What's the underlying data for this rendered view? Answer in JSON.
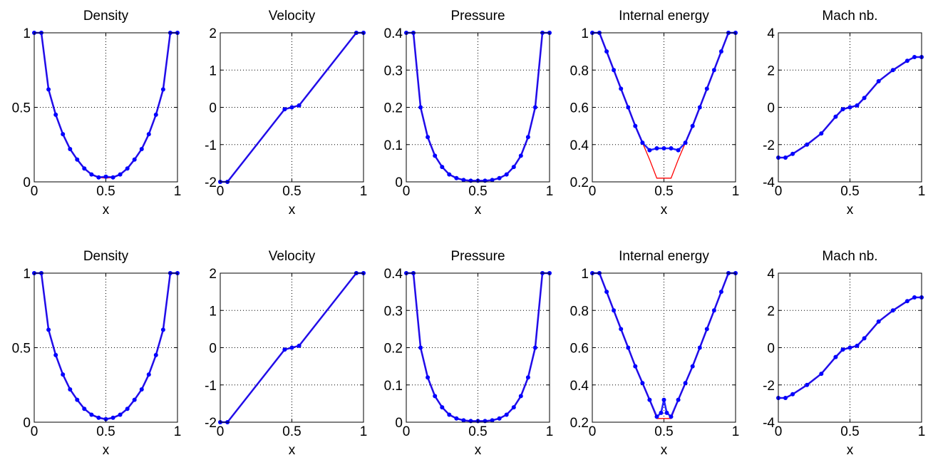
{
  "colors": {
    "exact": "#ff0000",
    "numerical": "#0000ff",
    "grid": "#000000",
    "axes": "#000000"
  },
  "chart_data": [
    {
      "type": "line",
      "title": "Density",
      "xlabel": "x",
      "ylabel": "",
      "xlim": [
        0,
        1
      ],
      "ylim": [
        0,
        1
      ],
      "xticks": [
        "0",
        "0.5",
        "1"
      ],
      "yticks": [
        "0",
        "0.5",
        "1"
      ],
      "grid": true,
      "series": [
        {
          "style": "line",
          "color": "#ff0000",
          "x": [
            0,
            0.05,
            0.1,
            0.15,
            0.2,
            0.25,
            0.3,
            0.35,
            0.4,
            0.45,
            0.5,
            0.55,
            0.6,
            0.65,
            0.7,
            0.75,
            0.8,
            0.85,
            0.9,
            0.95,
            1
          ],
          "y": [
            1,
            1,
            0.62,
            0.45,
            0.32,
            0.22,
            0.15,
            0.09,
            0.05,
            0.03,
            0.025,
            0.03,
            0.05,
            0.09,
            0.15,
            0.22,
            0.32,
            0.45,
            0.62,
            1,
            1
          ]
        },
        {
          "style": "markers",
          "color": "#0000ff",
          "x": [
            0,
            0.05,
            0.1,
            0.15,
            0.2,
            0.25,
            0.3,
            0.35,
            0.4,
            0.45,
            0.5,
            0.55,
            0.6,
            0.65,
            0.7,
            0.75,
            0.8,
            0.85,
            0.9,
            0.95,
            1
          ],
          "y": [
            1,
            1,
            0.62,
            0.45,
            0.32,
            0.22,
            0.15,
            0.09,
            0.05,
            0.03,
            0.035,
            0.03,
            0.05,
            0.09,
            0.15,
            0.22,
            0.32,
            0.45,
            0.62,
            1,
            1
          ]
        }
      ]
    },
    {
      "type": "line",
      "title": "Velocity",
      "xlabel": "x",
      "ylabel": "",
      "xlim": [
        0,
        1
      ],
      "ylim": [
        -2,
        2
      ],
      "xticks": [
        "0",
        "0.5",
        "1"
      ],
      "yticks": [
        "-2",
        "-1",
        "0",
        "1",
        "2"
      ],
      "grid": true,
      "series": [
        {
          "style": "line",
          "color": "#ff0000",
          "x": [
            0,
            0.05,
            0.45,
            0.5,
            0.55,
            0.95,
            1
          ],
          "y": [
            -2,
            -2,
            -0.05,
            0,
            0.05,
            2,
            2
          ]
        },
        {
          "style": "markers",
          "color": "#0000ff",
          "x": [
            0,
            0.05,
            0.45,
            0.5,
            0.55,
            0.95,
            1
          ],
          "y": [
            -2,
            -2,
            -0.05,
            0,
            0.05,
            2,
            2
          ]
        }
      ]
    },
    {
      "type": "line",
      "title": "Pressure",
      "xlabel": "x",
      "ylabel": "",
      "xlim": [
        0,
        1
      ],
      "ylim": [
        0,
        0.4
      ],
      "xticks": [
        "0",
        "0.5",
        "1"
      ],
      "yticks": [
        "0",
        "0.1",
        "0.2",
        "0.3",
        "0.4"
      ],
      "grid": true,
      "series": [
        {
          "style": "line",
          "color": "#ff0000",
          "x": [
            0,
            0.05,
            0.1,
            0.15,
            0.2,
            0.25,
            0.3,
            0.35,
            0.4,
            0.45,
            0.5,
            0.55,
            0.6,
            0.65,
            0.7,
            0.75,
            0.8,
            0.85,
            0.9,
            0.95,
            1
          ],
          "y": [
            0.4,
            0.4,
            0.2,
            0.12,
            0.07,
            0.04,
            0.02,
            0.01,
            0.005,
            0.003,
            0.003,
            0.003,
            0.005,
            0.01,
            0.02,
            0.04,
            0.07,
            0.12,
            0.2,
            0.4,
            0.4
          ]
        },
        {
          "style": "markers",
          "color": "#0000ff",
          "x": [
            0,
            0.05,
            0.1,
            0.15,
            0.2,
            0.25,
            0.3,
            0.35,
            0.4,
            0.45,
            0.5,
            0.55,
            0.6,
            0.65,
            0.7,
            0.75,
            0.8,
            0.85,
            0.9,
            0.95,
            1
          ],
          "y": [
            0.4,
            0.4,
            0.2,
            0.12,
            0.07,
            0.04,
            0.02,
            0.01,
            0.005,
            0.003,
            0.003,
            0.003,
            0.005,
            0.01,
            0.02,
            0.04,
            0.07,
            0.12,
            0.2,
            0.4,
            0.4
          ]
        }
      ]
    },
    {
      "type": "line",
      "title": "Internal energy",
      "xlabel": "x",
      "ylabel": "",
      "xlim": [
        0,
        1
      ],
      "ylim": [
        0.2,
        1
      ],
      "xticks": [
        "0",
        "0.5",
        "1"
      ],
      "yticks": [
        "0.2",
        "0.4",
        "0.6",
        "0.8",
        "1"
      ],
      "grid": true,
      "series": [
        {
          "style": "line",
          "color": "#ff0000",
          "x": [
            0,
            0.05,
            0.1,
            0.15,
            0.2,
            0.25,
            0.3,
            0.35,
            0.4,
            0.45,
            0.5,
            0.55,
            0.6,
            0.65,
            0.7,
            0.75,
            0.8,
            0.85,
            0.9,
            0.95,
            1
          ],
          "y": [
            1,
            1,
            0.9,
            0.8,
            0.7,
            0.6,
            0.5,
            0.41,
            0.32,
            0.22,
            0.22,
            0.22,
            0.32,
            0.41,
            0.5,
            0.6,
            0.7,
            0.8,
            0.9,
            1,
            1
          ]
        },
        {
          "style": "markers",
          "color": "#0000ff",
          "x": [
            0,
            0.05,
            0.1,
            0.15,
            0.2,
            0.25,
            0.3,
            0.35,
            0.4,
            0.45,
            0.5,
            0.55,
            0.6,
            0.65,
            0.7,
            0.75,
            0.8,
            0.85,
            0.9,
            0.95,
            1
          ],
          "y": [
            1,
            1,
            0.9,
            0.8,
            0.7,
            0.6,
            0.5,
            0.41,
            0.37,
            0.38,
            0.38,
            0.38,
            0.37,
            0.41,
            0.5,
            0.6,
            0.7,
            0.8,
            0.9,
            1,
            1
          ]
        }
      ]
    },
    {
      "type": "line",
      "title": "Mach nb.",
      "xlabel": "x",
      "ylabel": "",
      "xlim": [
        0,
        1
      ],
      "ylim": [
        -4,
        4
      ],
      "xticks": [
        "0",
        "0.5",
        "1"
      ],
      "yticks": [
        "-4",
        "-2",
        "0",
        "2",
        "4"
      ],
      "grid": true,
      "series": [
        {
          "style": "line",
          "color": "#ff0000",
          "x": [
            0,
            0.05,
            0.1,
            0.2,
            0.3,
            0.4,
            0.45,
            0.5,
            0.55,
            0.6,
            0.7,
            0.8,
            0.9,
            0.95,
            1
          ],
          "y": [
            -2.7,
            -2.7,
            -2.5,
            -2.0,
            -1.4,
            -0.5,
            -0.1,
            0,
            0.1,
            0.5,
            1.4,
            2.0,
            2.5,
            2.7,
            2.7
          ]
        },
        {
          "style": "markers",
          "color": "#0000ff",
          "x": [
            0,
            0.05,
            0.1,
            0.2,
            0.3,
            0.4,
            0.45,
            0.5,
            0.55,
            0.6,
            0.7,
            0.8,
            0.9,
            0.95,
            1
          ],
          "y": [
            -2.7,
            -2.7,
            -2.5,
            -2.0,
            -1.4,
            -0.5,
            -0.1,
            0,
            0.1,
            0.5,
            1.4,
            2.0,
            2.5,
            2.7,
            2.7
          ]
        }
      ]
    },
    {
      "type": "line",
      "title": "Density",
      "xlabel": "x",
      "ylabel": "",
      "xlim": [
        0,
        1
      ],
      "ylim": [
        0,
        1
      ],
      "xticks": [
        "0",
        "0.5",
        "1"
      ],
      "yticks": [
        "0",
        "0.5",
        "1"
      ],
      "grid": true,
      "series": [
        {
          "style": "line",
          "color": "#ff0000",
          "x": [
            0,
            0.05,
            0.1,
            0.15,
            0.2,
            0.25,
            0.3,
            0.35,
            0.4,
            0.45,
            0.5,
            0.55,
            0.6,
            0.65,
            0.7,
            0.75,
            0.8,
            0.85,
            0.9,
            0.95,
            1
          ],
          "y": [
            1,
            1,
            0.62,
            0.45,
            0.32,
            0.22,
            0.15,
            0.09,
            0.05,
            0.03,
            0.02,
            0.03,
            0.05,
            0.09,
            0.15,
            0.22,
            0.32,
            0.45,
            0.62,
            1,
            1
          ]
        },
        {
          "style": "markers",
          "color": "#0000ff",
          "x": [
            0,
            0.05,
            0.1,
            0.15,
            0.2,
            0.25,
            0.3,
            0.35,
            0.4,
            0.45,
            0.5,
            0.55,
            0.6,
            0.65,
            0.7,
            0.75,
            0.8,
            0.85,
            0.9,
            0.95,
            1
          ],
          "y": [
            1,
            1,
            0.62,
            0.45,
            0.32,
            0.22,
            0.15,
            0.09,
            0.05,
            0.03,
            0.02,
            0.03,
            0.05,
            0.09,
            0.15,
            0.22,
            0.32,
            0.45,
            0.62,
            1,
            1
          ]
        }
      ]
    },
    {
      "type": "line",
      "title": "Velocity",
      "xlabel": "x",
      "ylabel": "",
      "xlim": [
        0,
        1
      ],
      "ylim": [
        -2,
        2
      ],
      "xticks": [
        "0",
        "0.5",
        "1"
      ],
      "yticks": [
        "-2",
        "-1",
        "0",
        "1",
        "2"
      ],
      "grid": true,
      "series": [
        {
          "style": "line",
          "color": "#ff0000",
          "x": [
            0,
            0.05,
            0.45,
            0.5,
            0.55,
            0.95,
            1
          ],
          "y": [
            -2,
            -2,
            -0.05,
            0,
            0.05,
            2,
            2
          ]
        },
        {
          "style": "markers",
          "color": "#0000ff",
          "x": [
            0,
            0.05,
            0.45,
            0.5,
            0.55,
            0.95,
            1
          ],
          "y": [
            -2,
            -2,
            -0.05,
            0,
            0.05,
            2,
            2
          ]
        }
      ]
    },
    {
      "type": "line",
      "title": "Pressure",
      "xlabel": "x",
      "ylabel": "",
      "xlim": [
        0,
        1
      ],
      "ylim": [
        0,
        0.4
      ],
      "xticks": [
        "0",
        "0.5",
        "1"
      ],
      "yticks": [
        "0",
        "0.1",
        "0.2",
        "0.3",
        "0.4"
      ],
      "grid": true,
      "series": [
        {
          "style": "line",
          "color": "#ff0000",
          "x": [
            0,
            0.05,
            0.1,
            0.15,
            0.2,
            0.25,
            0.3,
            0.35,
            0.4,
            0.45,
            0.5,
            0.55,
            0.6,
            0.65,
            0.7,
            0.75,
            0.8,
            0.85,
            0.9,
            0.95,
            1
          ],
          "y": [
            0.4,
            0.4,
            0.2,
            0.12,
            0.07,
            0.04,
            0.02,
            0.01,
            0.005,
            0.003,
            0.003,
            0.003,
            0.005,
            0.01,
            0.02,
            0.04,
            0.07,
            0.12,
            0.2,
            0.4,
            0.4
          ]
        },
        {
          "style": "markers",
          "color": "#0000ff",
          "x": [
            0,
            0.05,
            0.1,
            0.15,
            0.2,
            0.25,
            0.3,
            0.35,
            0.4,
            0.45,
            0.5,
            0.55,
            0.6,
            0.65,
            0.7,
            0.75,
            0.8,
            0.85,
            0.9,
            0.95,
            1
          ],
          "y": [
            0.4,
            0.4,
            0.2,
            0.12,
            0.07,
            0.04,
            0.02,
            0.01,
            0.005,
            0.003,
            0.003,
            0.003,
            0.005,
            0.01,
            0.02,
            0.04,
            0.07,
            0.12,
            0.2,
            0.4,
            0.4
          ]
        }
      ]
    },
    {
      "type": "line",
      "title": "Internal energy",
      "xlabel": "x",
      "ylabel": "",
      "xlim": [
        0,
        1
      ],
      "ylim": [
        0.2,
        1
      ],
      "xticks": [
        "0",
        "0.5",
        "1"
      ],
      "yticks": [
        "0.2",
        "0.4",
        "0.6",
        "0.8",
        "1"
      ],
      "grid": true,
      "series": [
        {
          "style": "line",
          "color": "#ff0000",
          "x": [
            0,
            0.05,
            0.1,
            0.15,
            0.2,
            0.25,
            0.3,
            0.35,
            0.4,
            0.45,
            0.5,
            0.55,
            0.6,
            0.65,
            0.7,
            0.75,
            0.8,
            0.85,
            0.9,
            0.95,
            1
          ],
          "y": [
            1,
            1,
            0.9,
            0.8,
            0.7,
            0.6,
            0.5,
            0.41,
            0.32,
            0.22,
            0.22,
            0.22,
            0.32,
            0.41,
            0.5,
            0.6,
            0.7,
            0.8,
            0.9,
            1,
            1
          ]
        },
        {
          "style": "markers",
          "color": "#0000ff",
          "x": [
            0,
            0.05,
            0.1,
            0.15,
            0.2,
            0.25,
            0.3,
            0.35,
            0.4,
            0.45,
            0.48,
            0.5,
            0.52,
            0.55,
            0.6,
            0.65,
            0.7,
            0.75,
            0.8,
            0.85,
            0.9,
            0.95,
            1
          ],
          "y": [
            1,
            1,
            0.9,
            0.8,
            0.7,
            0.6,
            0.5,
            0.41,
            0.32,
            0.23,
            0.25,
            0.32,
            0.25,
            0.23,
            0.32,
            0.41,
            0.5,
            0.6,
            0.7,
            0.8,
            0.9,
            1,
            1
          ]
        }
      ]
    },
    {
      "type": "line",
      "title": "Mach nb.",
      "xlabel": "x",
      "ylabel": "",
      "xlim": [
        0,
        1
      ],
      "ylim": [
        -4,
        4
      ],
      "xticks": [
        "0",
        "0.5",
        "1"
      ],
      "yticks": [
        "-4",
        "-2",
        "0",
        "2",
        "4"
      ],
      "grid": true,
      "series": [
        {
          "style": "line",
          "color": "#ff0000",
          "x": [
            0,
            0.05,
            0.1,
            0.2,
            0.3,
            0.4,
            0.45,
            0.5,
            0.55,
            0.6,
            0.7,
            0.8,
            0.9,
            0.95,
            1
          ],
          "y": [
            -2.7,
            -2.7,
            -2.5,
            -2.0,
            -1.4,
            -0.5,
            -0.1,
            0,
            0.1,
            0.5,
            1.4,
            2.0,
            2.5,
            2.7,
            2.7
          ]
        },
        {
          "style": "markers",
          "color": "#0000ff",
          "x": [
            0,
            0.05,
            0.1,
            0.2,
            0.3,
            0.4,
            0.45,
            0.5,
            0.55,
            0.6,
            0.7,
            0.8,
            0.9,
            0.95,
            1
          ],
          "y": [
            -2.7,
            -2.7,
            -2.5,
            -2.0,
            -1.4,
            -0.5,
            -0.1,
            0,
            0.1,
            0.5,
            1.4,
            2.0,
            2.5,
            2.7,
            2.7
          ]
        }
      ]
    }
  ]
}
